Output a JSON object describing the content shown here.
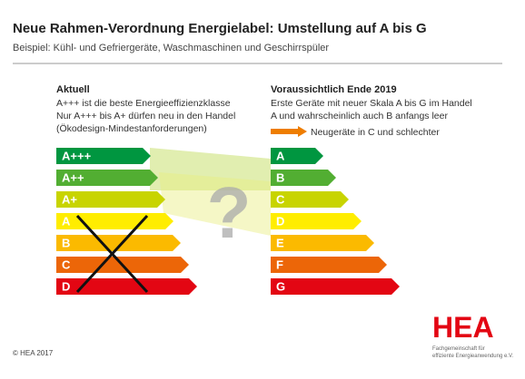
{
  "header": {
    "title": "Neue Rahmen-Verordnung Energielabel: Umstellung auf A bis G",
    "subtitle": "Beispiel: Kühl- und Gefriergeräte, Waschmaschinen und Geschirrspüler"
  },
  "left": {
    "heading": "Aktuell",
    "lines": [
      "A+++ ist die beste Energieeffizienzklasse",
      "Nur  A+++ bis A+ dürfen neu in den Handel",
      "(Ökodesign-Mindestanforderungen)"
    ],
    "labels": [
      "A+++",
      "A++",
      "A+",
      "A",
      "B",
      "C",
      "D"
    ]
  },
  "middle": {
    "symbol": "?"
  },
  "right": {
    "heading": "Voraussichtlich Ende 2019",
    "lines": [
      "Erste Geräte mit neuer Skala A bis G im Handel",
      "A und wahrscheinlich auch B anfangs leer"
    ],
    "legend": "Neugeräte in C und schlechter",
    "labels": [
      "A",
      "B",
      "C",
      "D",
      "E",
      "F",
      "G"
    ]
  },
  "logo": {
    "name": "HEA",
    "lines": [
      "Fachgemeinschaft für",
      "effiziente Energieanwendung e.V."
    ]
  },
  "footer": {
    "copyright": "© HEA 2017"
  }
}
